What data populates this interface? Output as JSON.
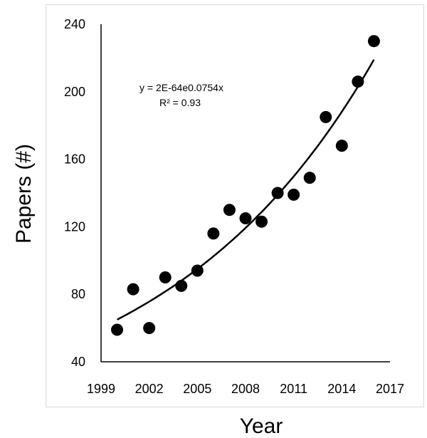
{
  "chart_data": {
    "type": "scatter",
    "title": "",
    "xlabel": "Year",
    "ylabel": "Papers (#)",
    "xlim": [
      1999,
      2017
    ],
    "ylim": [
      40,
      240
    ],
    "xticks": [
      1999,
      2002,
      2005,
      2008,
      2011,
      2014,
      2017
    ],
    "yticks": [
      40,
      80,
      120,
      160,
      200,
      240
    ],
    "grid": false,
    "legend": "none",
    "series": [
      {
        "points": [
          [
            2000,
            59
          ],
          [
            2001,
            83
          ],
          [
            2002,
            60
          ],
          [
            2003,
            90
          ],
          [
            2004,
            85
          ],
          [
            2005,
            94
          ],
          [
            2006,
            116
          ],
          [
            2007,
            130
          ],
          [
            2008,
            125
          ],
          [
            2009,
            123
          ],
          [
            2010,
            140
          ],
          [
            2011,
            139
          ],
          [
            2012,
            149
          ],
          [
            2013,
            185
          ],
          [
            2014,
            168
          ],
          [
            2015,
            206
          ],
          [
            2016,
            230
          ]
        ],
        "color": "#000000"
      }
    ],
    "trendline": {
      "type": "exponential",
      "x_range": [
        2000,
        2016
      ],
      "y_start": 65,
      "y_end": 219,
      "color": "#000000"
    },
    "annotations": [
      {
        "text": "y = 2E-64e0.0754x"
      },
      {
        "text": "R² = 0.93"
      }
    ]
  }
}
